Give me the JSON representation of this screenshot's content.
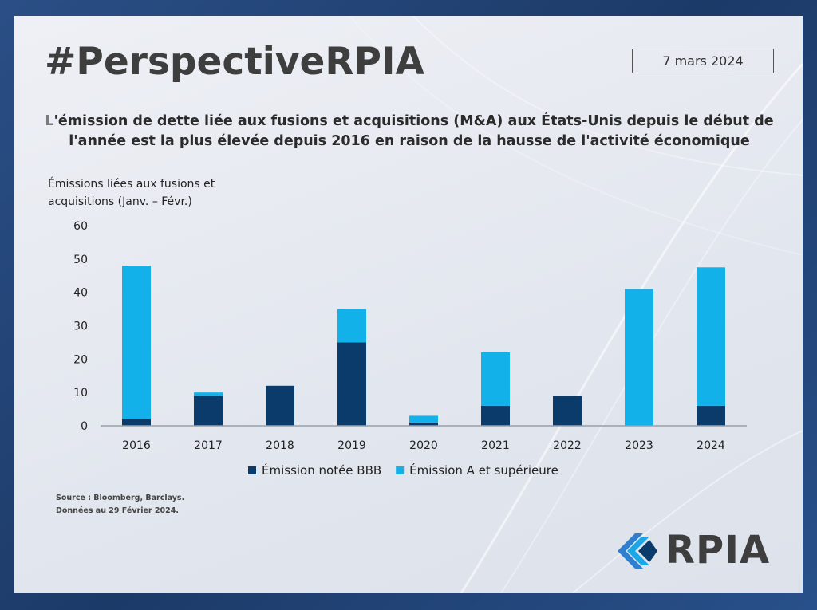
{
  "brand": {
    "hashtag": "#PerspectiveRPIA",
    "date": "7 mars 2024",
    "logo_text": "RPIA"
  },
  "headline": {
    "lead": "L",
    "line1": "'émission de dette liée aux fusions et acquisitions (M&A) aux États-Unis depuis le début de",
    "line2": "l'année est la plus élevée depuis 2016 en raison de la hausse de l'activité économique"
  },
  "source": {
    "line1": "Source : Bloomberg, Barclays.",
    "line2": "Données au 29 Février 2024."
  },
  "colors": {
    "bbb": "#0b3b6b",
    "a_plus": "#12b1ea",
    "axis": "#9aa0a8"
  },
  "chart_data": {
    "type": "bar",
    "stacked": true,
    "title": "",
    "ylabel_line1": "Émissions liées aux fusions et",
    "ylabel_line2": "acquisitions (Janv. – Févr.)",
    "xlabel": "",
    "ylim": [
      0,
      60
    ],
    "yticks": [
      0,
      10,
      20,
      30,
      40,
      50,
      60
    ],
    "categories": [
      "2016",
      "2017",
      "2018",
      "2019",
      "2020",
      "2021",
      "2022",
      "2023",
      "2024"
    ],
    "series": [
      {
        "name": "Émission notée BBB",
        "color": "#0b3b6b",
        "values": [
          2,
          9,
          12,
          25,
          1,
          6,
          9,
          0,
          6
        ]
      },
      {
        "name": "Émission A et supérieure",
        "color": "#12b1ea",
        "values": [
          46,
          1,
          0,
          10,
          2,
          16,
          0,
          41,
          41.5
        ]
      }
    ],
    "legend_position": "bottom-center"
  }
}
